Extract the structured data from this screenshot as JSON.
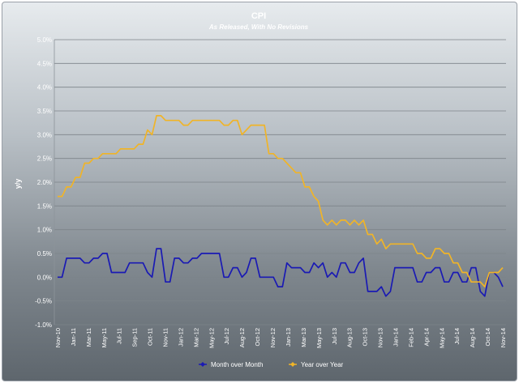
{
  "chart_data": {
    "type": "line",
    "title": "CPI",
    "subtitle": "As Released, With No Revisions",
    "ylabel": "y/y",
    "xlabel": "",
    "ylim": [
      -1.0,
      5.0
    ],
    "yticks": [
      5.0,
      4.5,
      4.0,
      3.5,
      3.0,
      2.5,
      2.0,
      1.5,
      1.0,
      0.5,
      0.0,
      -0.5,
      -1.0
    ],
    "ytick_labels": [
      "5.0%",
      "4.5%",
      "4.0%",
      "3.5%",
      "3.0%",
      "2.5%",
      "2.0%",
      "1.5%",
      "1.0%",
      "0.5%",
      "0.0%",
      "-0.5%",
      "-1.0%"
    ],
    "x_label_ticks": [
      "Nov-10",
      "Jan-11",
      "Mar-11",
      "May-11",
      "Jul-11",
      "Sep-11",
      "Oct-11",
      "Nov-11",
      "Jan-12",
      "Mar-12",
      "May-12",
      "Jul-12",
      "Aug-12",
      "Oct-12",
      "Nov-12",
      "Jan-13",
      "Mar-13",
      "May-13",
      "Jul-13",
      "Aug-13",
      "Oct-13",
      "Nov-13",
      "Jan-14",
      "Feb-14",
      "Apr-14",
      "May-14",
      "Jul-14",
      "Aug-14",
      "Oct-14",
      "Nov-14"
    ],
    "grid": true,
    "legend_position": "bottom",
    "series": [
      {
        "name": "Month over Month",
        "color": "#1a1ab4",
        "values": [
          0.0,
          0.0,
          0.4,
          0.4,
          0.4,
          0.4,
          0.3,
          0.3,
          0.4,
          0.4,
          0.5,
          0.5,
          0.1,
          0.1,
          0.1,
          0.1,
          0.3,
          0.3,
          0.3,
          0.3,
          0.1,
          0.0,
          0.6,
          0.6,
          -0.1,
          -0.1,
          0.4,
          0.4,
          0.3,
          0.3,
          0.4,
          0.4,
          0.5,
          0.5,
          0.5,
          0.5,
          0.5,
          0.0,
          0.0,
          0.2,
          0.2,
          0.0,
          0.1,
          0.4,
          0.4,
          0.0,
          0.0,
          0.0,
          0.0,
          -0.2,
          -0.2,
          0.3,
          0.2,
          0.2,
          0.2,
          0.1,
          0.1,
          0.3,
          0.2,
          0.3,
          0.0,
          0.1,
          0.0,
          0.3,
          0.3,
          0.1,
          0.1,
          0.3,
          0.4,
          -0.3,
          -0.3,
          -0.3,
          -0.2,
          -0.4,
          -0.3,
          0.2,
          0.2,
          0.2,
          0.2,
          0.2,
          -0.1,
          -0.1,
          0.1,
          0.1,
          0.2,
          0.2,
          -0.1,
          -0.1,
          0.1,
          0.1,
          -0.1,
          -0.1,
          0.2,
          0.2,
          -0.3,
          -0.4,
          0.1,
          0.1,
          0.0,
          -0.2
        ]
      },
      {
        "name": "Year over Year",
        "color": "#f0b428",
        "values": [
          1.7,
          1.7,
          1.9,
          1.9,
          2.1,
          2.1,
          2.4,
          2.4,
          2.5,
          2.5,
          2.6,
          2.6,
          2.6,
          2.6,
          2.7,
          2.7,
          2.7,
          2.7,
          2.8,
          2.8,
          3.1,
          3.0,
          3.4,
          3.4,
          3.3,
          3.3,
          3.3,
          3.3,
          3.2,
          3.2,
          3.3,
          3.3,
          3.3,
          3.3,
          3.3,
          3.3,
          3.3,
          3.2,
          3.2,
          3.3,
          3.3,
          3.0,
          3.1,
          3.2,
          3.2,
          3.2,
          3.2,
          2.6,
          2.6,
          2.5,
          2.5,
          2.4,
          2.3,
          2.2,
          2.2,
          1.9,
          1.9,
          1.7,
          1.6,
          1.2,
          1.1,
          1.2,
          1.1,
          1.2,
          1.2,
          1.1,
          1.2,
          1.1,
          1.2,
          0.9,
          0.9,
          0.7,
          0.8,
          0.6,
          0.7,
          0.7,
          0.7,
          0.7,
          0.7,
          0.7,
          0.5,
          0.5,
          0.4,
          0.4,
          0.6,
          0.6,
          0.5,
          0.5,
          0.3,
          0.3,
          0.1,
          0.1,
          -0.1,
          -0.1,
          -0.1,
          -0.2,
          0.1,
          0.1,
          0.1,
          0.2
        ]
      }
    ]
  }
}
